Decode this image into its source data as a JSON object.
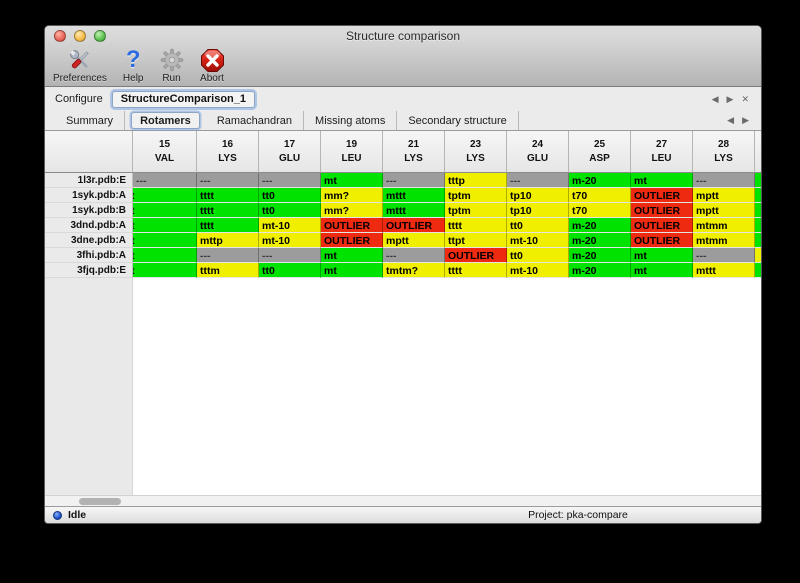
{
  "window": {
    "title": "Structure comparison"
  },
  "traffic_lights": {
    "close": "#ec6a5e",
    "minimize": "#f5bf4f",
    "zoom": "#61c554"
  },
  "toolbar": {
    "items": [
      {
        "label": "Preferences",
        "icon": "tools-icon"
      },
      {
        "label": "Help",
        "icon": "question-icon"
      },
      {
        "label": "Run",
        "icon": "gear-icon"
      },
      {
        "label": "Abort",
        "icon": "abort-icon"
      }
    ]
  },
  "configure": {
    "label": "Configure",
    "name": "StructureComparison_1",
    "nav": {
      "prev": "◀",
      "next": "▶",
      "close": "✕"
    }
  },
  "tabs": {
    "items": [
      {
        "label": "Summary",
        "selected": false
      },
      {
        "label": "Rotamers",
        "selected": true
      },
      {
        "label": "Ramachandran",
        "selected": false
      },
      {
        "label": "Missing atoms",
        "selected": false
      },
      {
        "label": "Secondary structure",
        "selected": false
      }
    ],
    "nav": {
      "prev": "◀",
      "next": "▶"
    }
  },
  "colors": {
    "green": "#00e300",
    "yellow": "#f0ef00",
    "red": "#ee2a10",
    "gray": "#9c9c9c"
  },
  "table": {
    "columns": [
      {
        "num": "15",
        "res": "VAL"
      },
      {
        "num": "16",
        "res": "LYS"
      },
      {
        "num": "17",
        "res": "GLU"
      },
      {
        "num": "19",
        "res": "LEU"
      },
      {
        "num": "21",
        "res": "LYS"
      },
      {
        "num": "23",
        "res": "LYS"
      },
      {
        "num": "24",
        "res": "GLU"
      },
      {
        "num": "25",
        "res": "ASP"
      },
      {
        "num": "27",
        "res": "LEU"
      },
      {
        "num": "28",
        "res": "LYS"
      }
    ],
    "rows": [
      {
        "label": "1l3r.pdb:E",
        "edge": "green",
        "cells": [
          {
            "t": "---",
            "c": "gray"
          },
          {
            "t": "---",
            "c": "gray"
          },
          {
            "t": "---",
            "c": "gray"
          },
          {
            "t": "mt",
            "c": "green"
          },
          {
            "t": "---",
            "c": "gray"
          },
          {
            "t": "tttp",
            "c": "yellow"
          },
          {
            "t": "---",
            "c": "gray"
          },
          {
            "t": "m-20",
            "c": "green"
          },
          {
            "t": "mt",
            "c": "green"
          },
          {
            "t": "---",
            "c": "gray"
          }
        ]
      },
      {
        "label": "1syk.pdb:A",
        "edge": "green",
        "cells": [
          {
            "t": "t",
            "c": "green",
            "clip": true
          },
          {
            "t": "tttt",
            "c": "green"
          },
          {
            "t": "tt0",
            "c": "green"
          },
          {
            "t": "mm?",
            "c": "yellow"
          },
          {
            "t": "mttt",
            "c": "green"
          },
          {
            "t": "tptm",
            "c": "yellow"
          },
          {
            "t": "tp10",
            "c": "yellow"
          },
          {
            "t": "t70",
            "c": "yellow"
          },
          {
            "t": "OUTLIER",
            "c": "red"
          },
          {
            "t": "mptt",
            "c": "yellow"
          }
        ]
      },
      {
        "label": "1syk.pdb:B",
        "edge": "green",
        "cells": [
          {
            "t": "t",
            "c": "green",
            "clip": true
          },
          {
            "t": "tttt",
            "c": "green"
          },
          {
            "t": "tt0",
            "c": "green"
          },
          {
            "t": "mm?",
            "c": "yellow"
          },
          {
            "t": "mttt",
            "c": "green"
          },
          {
            "t": "tptm",
            "c": "yellow"
          },
          {
            "t": "tp10",
            "c": "yellow"
          },
          {
            "t": "t70",
            "c": "yellow"
          },
          {
            "t": "OUTLIER",
            "c": "red"
          },
          {
            "t": "mptt",
            "c": "yellow"
          }
        ]
      },
      {
        "label": "3dnd.pdb:A",
        "edge": "green",
        "cells": [
          {
            "t": "t",
            "c": "green",
            "clip": true
          },
          {
            "t": "tttt",
            "c": "green"
          },
          {
            "t": "mt-10",
            "c": "yellow"
          },
          {
            "t": "OUTLIER",
            "c": "red"
          },
          {
            "t": "OUTLIER",
            "c": "red"
          },
          {
            "t": "tttt",
            "c": "yellow"
          },
          {
            "t": "tt0",
            "c": "yellow"
          },
          {
            "t": "m-20",
            "c": "green"
          },
          {
            "t": "OUTLIER",
            "c": "red"
          },
          {
            "t": "mtmm",
            "c": "yellow"
          }
        ]
      },
      {
        "label": "3dne.pdb:A",
        "edge": "green",
        "cells": [
          {
            "t": "t",
            "c": "green",
            "clip": true
          },
          {
            "t": "mttp",
            "c": "yellow"
          },
          {
            "t": "mt-10",
            "c": "yellow"
          },
          {
            "t": "OUTLIER",
            "c": "red"
          },
          {
            "t": "mptt",
            "c": "yellow"
          },
          {
            "t": "ttpt",
            "c": "yellow"
          },
          {
            "t": "mt-10",
            "c": "yellow"
          },
          {
            "t": "m-20",
            "c": "green"
          },
          {
            "t": "OUTLIER",
            "c": "red"
          },
          {
            "t": "mtmm",
            "c": "yellow"
          }
        ]
      },
      {
        "label": "3fhi.pdb:A",
        "edge": "yellow",
        "cells": [
          {
            "t": "t",
            "c": "green",
            "clip": true
          },
          {
            "t": "---",
            "c": "gray"
          },
          {
            "t": "---",
            "c": "gray"
          },
          {
            "t": "mt",
            "c": "green"
          },
          {
            "t": "---",
            "c": "gray"
          },
          {
            "t": "OUTLIER",
            "c": "red"
          },
          {
            "t": "tt0",
            "c": "yellow"
          },
          {
            "t": "m-20",
            "c": "green"
          },
          {
            "t": "mt",
            "c": "green"
          },
          {
            "t": "---",
            "c": "gray"
          }
        ]
      },
      {
        "label": "3fjq.pdb:E",
        "edge": "green",
        "cells": [
          {
            "t": "t",
            "c": "green",
            "clip": true
          },
          {
            "t": "tttm",
            "c": "yellow"
          },
          {
            "t": "tt0",
            "c": "green"
          },
          {
            "t": "mt",
            "c": "green"
          },
          {
            "t": "tmtm?",
            "c": "yellow"
          },
          {
            "t": "tttt",
            "c": "yellow"
          },
          {
            "t": "mt-10",
            "c": "yellow"
          },
          {
            "t": "m-20",
            "c": "green"
          },
          {
            "t": "mt",
            "c": "green"
          },
          {
            "t": "mttt",
            "c": "yellow"
          }
        ]
      }
    ]
  },
  "status": {
    "idle": "Idle",
    "project": "Project: pka-compare"
  }
}
